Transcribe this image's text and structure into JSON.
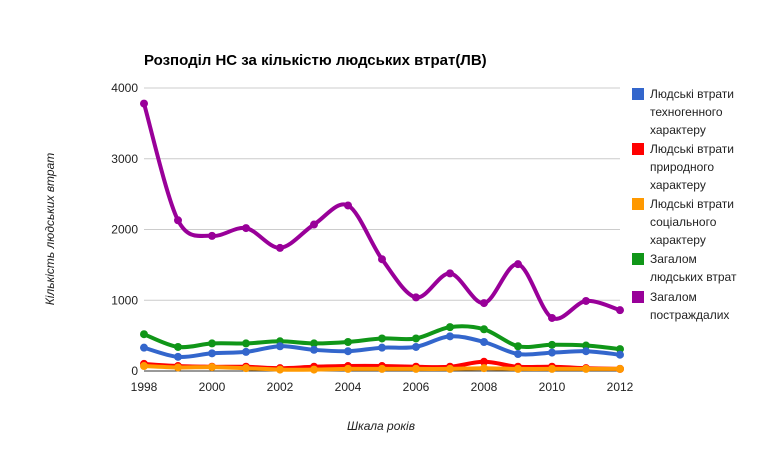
{
  "chart_data": {
    "type": "line",
    "title": "Розподіл НС за кількістю людських втрат(ЛВ)",
    "xlabel": "Шкала років",
    "ylabel": "Кількість людських втрат",
    "x": [
      1998,
      1999,
      2000,
      2001,
      2002,
      2003,
      2004,
      2005,
      2006,
      2007,
      2008,
      2009,
      2010,
      2011,
      2012
    ],
    "x_ticks": [
      "1998",
      "2000",
      "2002",
      "2004",
      "2006",
      "2008",
      "2010",
      "2012"
    ],
    "y_ticks": [
      "0",
      "1000",
      "2000",
      "3000",
      "4000"
    ],
    "xlim": [
      1998,
      2012
    ],
    "ylim": [
      0,
      4000
    ],
    "grid": "horizontal",
    "legend_position": "right",
    "series": [
      {
        "name": "Загалом постраждалих",
        "legend_lines": [
          "Загалом",
          "постраждалих"
        ],
        "color": "#990099",
        "values": [
          3780,
          2130,
          1910,
          2020,
          1740,
          2070,
          2340,
          1580,
          1040,
          1380,
          960,
          1510,
          750,
          990,
          860
        ]
      },
      {
        "name": "Загалом людських втрат",
        "legend_lines": [
          "Загалом",
          "людських втрат"
        ],
        "color": "#109618",
        "values": [
          520,
          340,
          390,
          390,
          420,
          390,
          410,
          460,
          460,
          620,
          590,
          350,
          370,
          360,
          310
        ]
      },
      {
        "name": "Людські втрати техногенного характеру",
        "legend_lines": [
          "Людські втрати",
          "техногенного",
          "характеру"
        ],
        "color": "#3366CC",
        "values": [
          330,
          200,
          250,
          270,
          350,
          300,
          280,
          330,
          340,
          490,
          410,
          240,
          260,
          280,
          230
        ]
      },
      {
        "name": "Людські втрати природного характеру",
        "legend_lines": [
          "Людські втрати",
          "природного",
          "характеру"
        ],
        "color": "#FF0000",
        "values": [
          100,
          70,
          60,
          60,
          40,
          60,
          70,
          70,
          60,
          60,
          130,
          60,
          60,
          40,
          30
        ]
      },
      {
        "name": "Людські втрати соціального характеру",
        "legend_lines": [
          "Людські втрати",
          "соціального",
          "характеру"
        ],
        "color": "#FF9900",
        "values": [
          70,
          50,
          55,
          40,
          20,
          20,
          30,
          30,
          30,
          30,
          40,
          30,
          30,
          30,
          30
        ]
      }
    ],
    "legend_order": [
      2,
      3,
      4,
      1,
      0
    ]
  }
}
